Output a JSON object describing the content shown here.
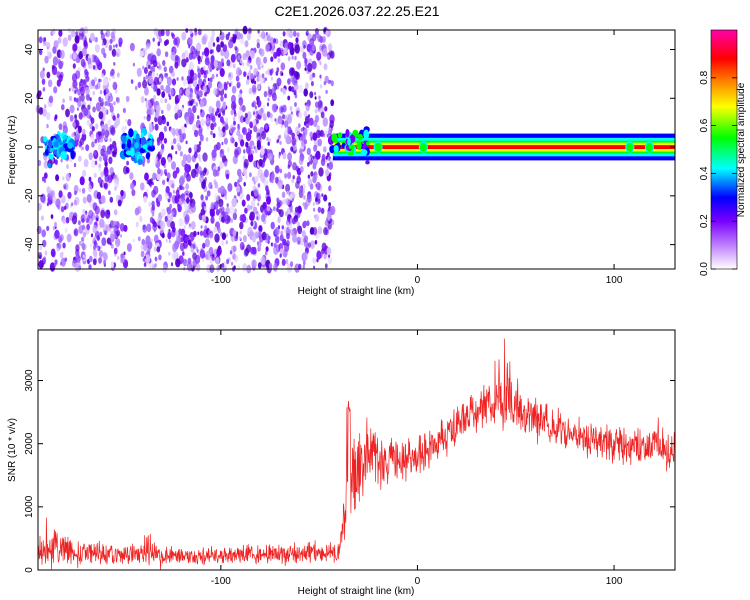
{
  "title": "C2E1.2026.037.22.25.E21",
  "chart_data": [
    {
      "type": "heatmap",
      "xlabel": "Height of straight line (km)",
      "ylabel": "Frequency (Hz)",
      "xlim": [
        -193,
        131
      ],
      "ylim": [
        -50,
        48
      ],
      "xticks": [
        -100,
        0,
        100
      ],
      "yticks": [
        -40,
        -20,
        0,
        20,
        40
      ],
      "colorbar": {
        "label": "Normalized spectral amplitude",
        "range": [
          0,
          1
        ],
        "ticks": [
          0.0,
          0.2,
          0.4,
          0.6,
          0.8
        ],
        "colormap": [
          "#ffffff",
          "#cc99ff",
          "#7a00ff",
          "#0000ff",
          "#00ffff",
          "#00ff00",
          "#ffff00",
          "#ff8800",
          "#ff0000",
          "#ff00aa"
        ]
      },
      "regions": [
        {
          "x": [
            -193,
            -43
          ],
          "description_level": 0.15,
          "freq_spread": [
            -50,
            48
          ]
        },
        {
          "x": [
            -43,
            131
          ],
          "description_level": 0.95,
          "freq_center": 0
        }
      ]
    },
    {
      "type": "line",
      "xlabel": "Height of straight line (km)",
      "ylabel": "SNR (10 * v/v)",
      "xlim": [
        -193,
        131
      ],
      "ylim": [
        0,
        3800
      ],
      "xticks": [
        -100,
        0,
        100
      ],
      "yticks": [
        0,
        1000,
        2000,
        3000
      ],
      "color": "#ee2222",
      "envelope": {
        "x": [
          -193,
          -180,
          -165,
          -150,
          -140,
          -137,
          -130,
          -110,
          -90,
          -70,
          -50,
          -40,
          -35,
          -30,
          -25,
          -20,
          -10,
          0,
          10,
          20,
          30,
          40,
          45,
          50,
          60,
          70,
          80,
          90,
          100,
          110,
          120,
          131
        ],
        "mean": [
          300,
          320,
          280,
          230,
          260,
          420,
          230,
          230,
          250,
          260,
          260,
          280,
          1300,
          1700,
          1900,
          1750,
          1700,
          1800,
          2000,
          2300,
          2500,
          2700,
          2750,
          2650,
          2400,
          2250,
          2150,
          2050,
          2000,
          1950,
          1950,
          1900
        ],
        "amp": [
          250,
          300,
          200,
          150,
          180,
          300,
          150,
          150,
          160,
          160,
          170,
          150,
          700,
          700,
          600,
          500,
          400,
          400,
          300,
          350,
          350,
          500,
          600,
          450,
          350,
          300,
          300,
          300,
          300,
          300,
          350,
          400
        ]
      }
    }
  ]
}
